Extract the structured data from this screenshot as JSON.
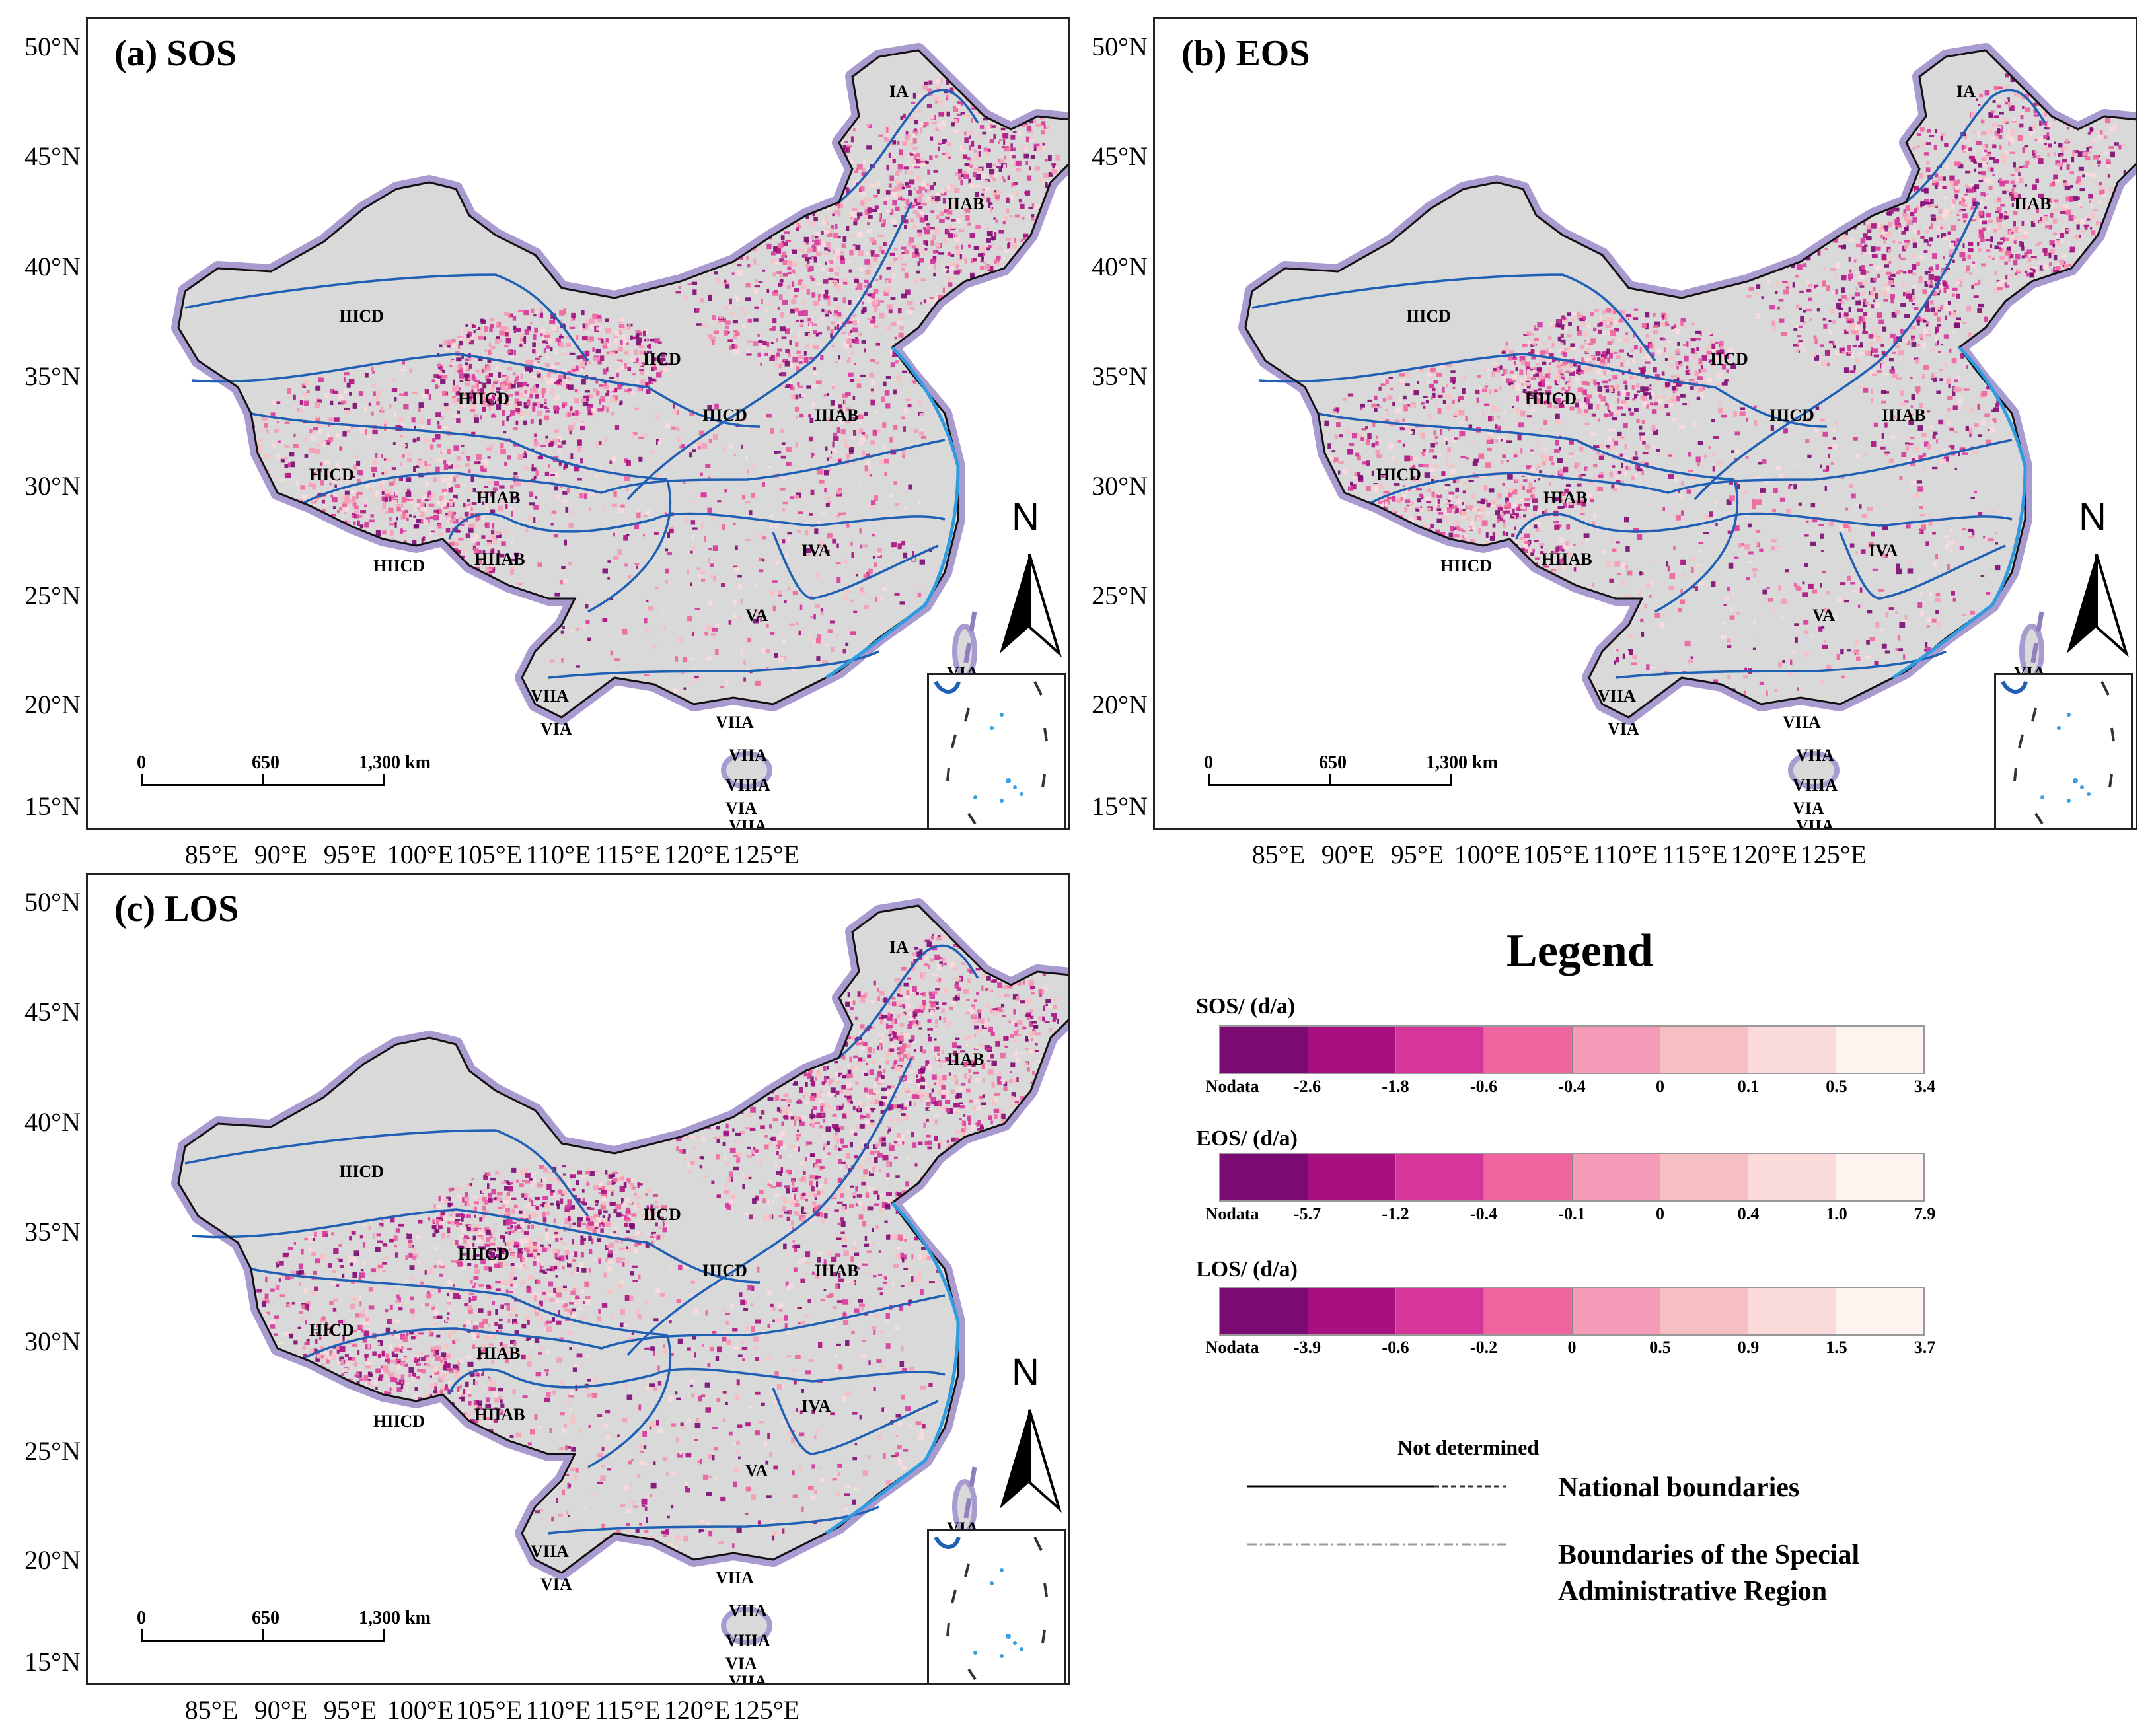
{
  "panels": [
    {
      "title": "(a) SOS"
    },
    {
      "title": "(b) EOS"
    },
    {
      "title": "(c) LOS"
    }
  ],
  "lat_labels": [
    "50°N",
    "45°N",
    "40°N",
    "35°N",
    "30°N",
    "25°N",
    "20°N",
    "15°N"
  ],
  "lon_labels": [
    "85°E",
    "90°E",
    "95°E",
    "100°E",
    "105°E",
    "110°E",
    "115°E",
    "120°E",
    "125°E"
  ],
  "regions": [
    "IA",
    "IIAB",
    "IIICD",
    "IICD",
    "HIICD",
    "IIICD",
    "IIIAB",
    "HICD",
    "HIAB",
    "HIIAB",
    "HIICD",
    "IVA",
    "VA",
    "VIA",
    "VIIA",
    "VIIA",
    "VIA",
    "VIIA",
    "VIIA",
    "VIIIA",
    "VIA",
    "VIIA"
  ],
  "scale_bar": {
    "t0": "0",
    "t1": "650",
    "t2": "1,300 km"
  },
  "north_arrow": "N",
  "legend": {
    "title": "Legend",
    "colors": [
      "#7b0a73",
      "#a8107f",
      "#d6359a",
      "#f0649f",
      "#f49bb7",
      "#f7bfc2",
      "#fbdadb",
      "#fdf3ef"
    ],
    "scales": [
      {
        "name": "SOS/ (d/a)",
        "ticks": [
          "Nodata",
          "-2.6",
          "-1.8",
          "-0.6",
          "-0.4",
          "0",
          "0.1",
          "0.5",
          "3.4"
        ]
      },
      {
        "name": "EOS/ (d/a)",
        "ticks": [
          "Nodata",
          "-5.7",
          "-1.2",
          "-0.4",
          "-0.1",
          "0",
          "0.4",
          "1.0",
          "7.9"
        ]
      },
      {
        "name": "LOS/ (d/a)",
        "ticks": [
          "Nodata",
          "-3.9",
          "-0.6",
          "-0.2",
          "0",
          "0.5",
          "0.9",
          "1.5",
          "3.7"
        ]
      }
    ],
    "not_determined": "Not determined",
    "national_boundaries": "National boundaries",
    "sar_boundaries_line1": "Boundaries of the Special",
    "sar_boundaries_line2": "Administrative Region"
  }
}
